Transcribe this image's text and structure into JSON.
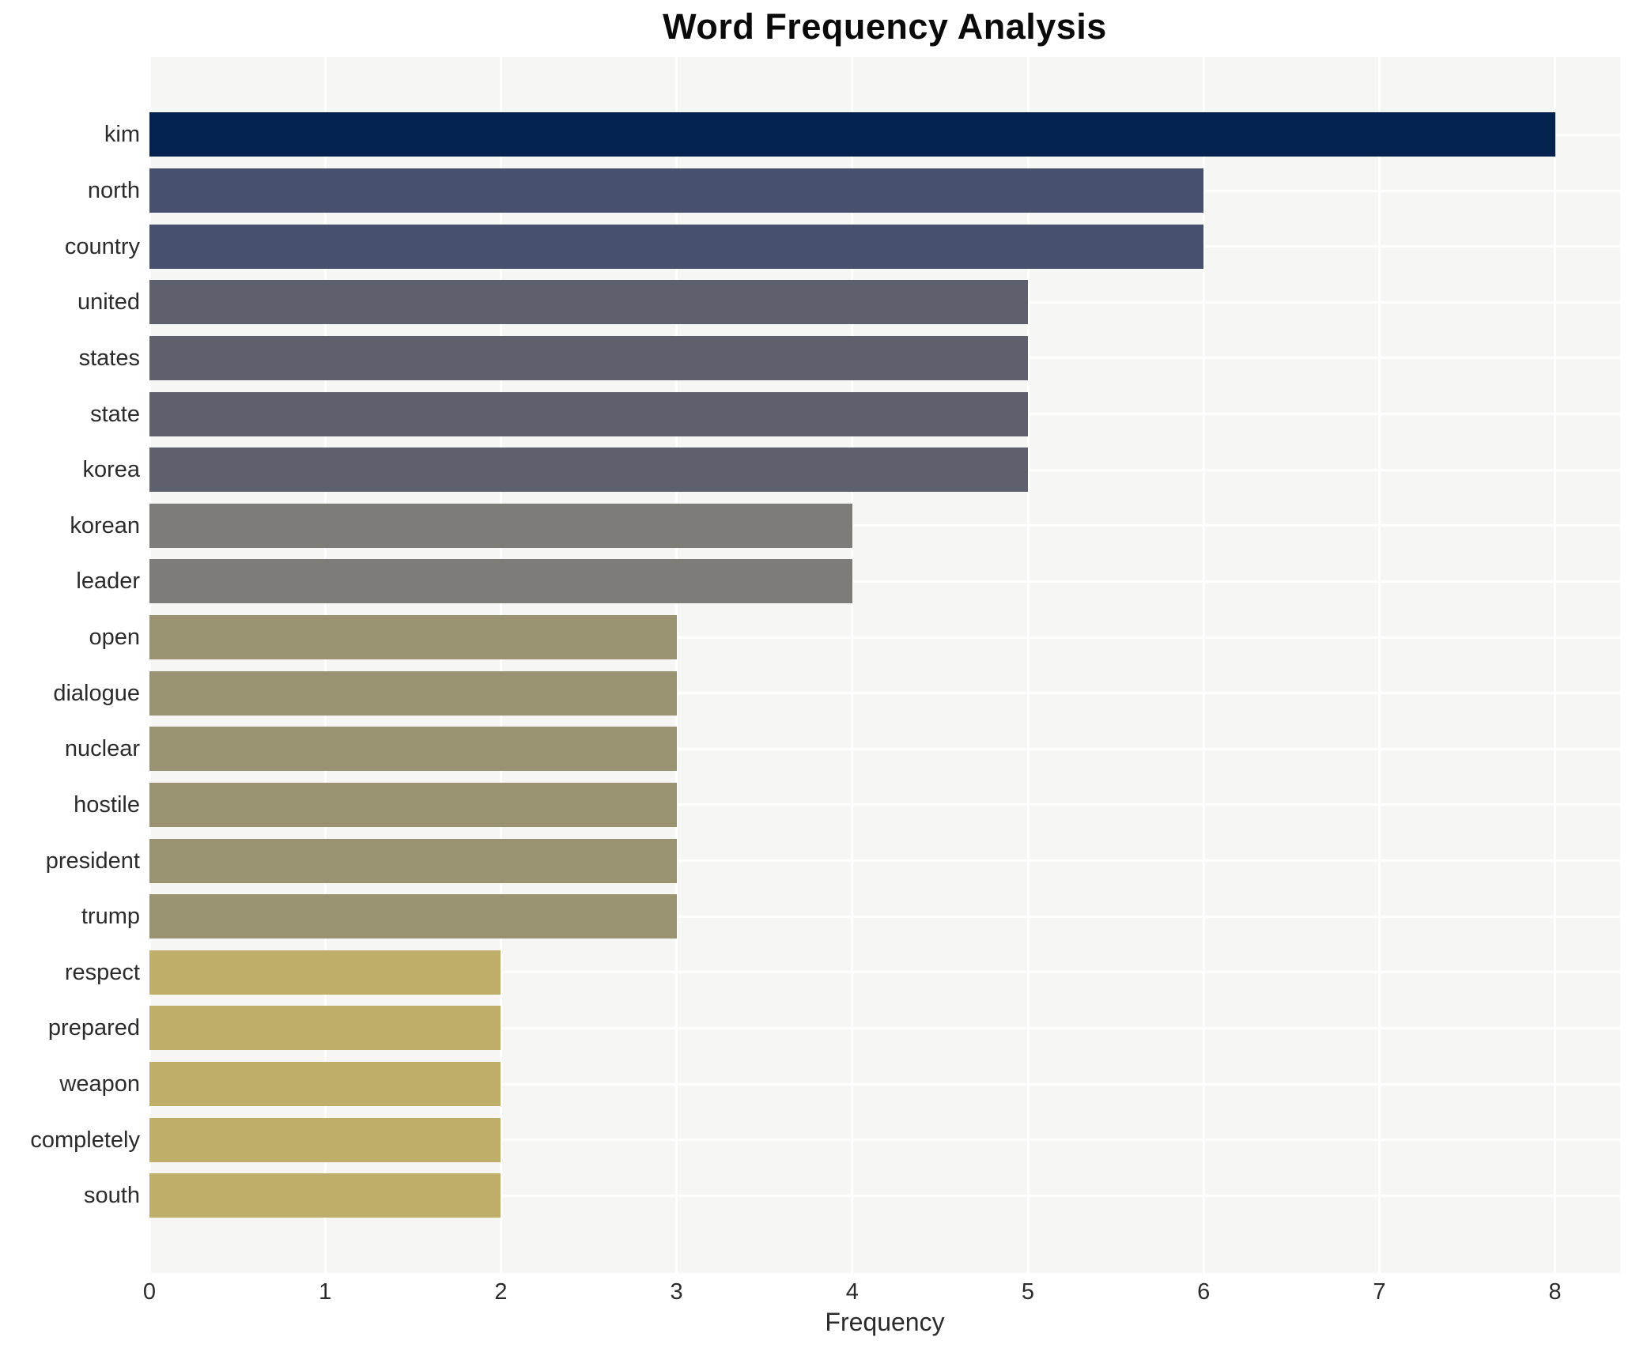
{
  "chart_data": {
    "type": "bar",
    "orientation": "horizontal",
    "title": "Word Frequency Analysis",
    "xlabel": "Frequency",
    "ylabel": "",
    "categories": [
      "kim",
      "north",
      "country",
      "united",
      "states",
      "state",
      "korea",
      "korean",
      "leader",
      "open",
      "dialogue",
      "nuclear",
      "hostile",
      "president",
      "trump",
      "respect",
      "prepared",
      "weapon",
      "completely",
      "south"
    ],
    "values": [
      8,
      6,
      6,
      5,
      5,
      5,
      5,
      4,
      4,
      3,
      3,
      3,
      3,
      3,
      3,
      2,
      2,
      2,
      2,
      2
    ],
    "xticks": [
      0,
      1,
      2,
      3,
      4,
      5,
      6,
      7,
      8
    ],
    "xlim": [
      0,
      8.37
    ],
    "grid": true,
    "legend": false,
    "colors": {
      "page_bg": "#ffffff",
      "plot_bg": "#f6f6f4",
      "grid": "#ffffff",
      "title_text": "#0a0a0a",
      "tick_text": "#2b2b2b",
      "bar_by_value": {
        "8": "#03234e",
        "6": "#47516d",
        "5": "#5e616d",
        "4": "#7d7c79",
        "3": "#9a9372",
        "2": "#bfae6a"
      }
    }
  }
}
